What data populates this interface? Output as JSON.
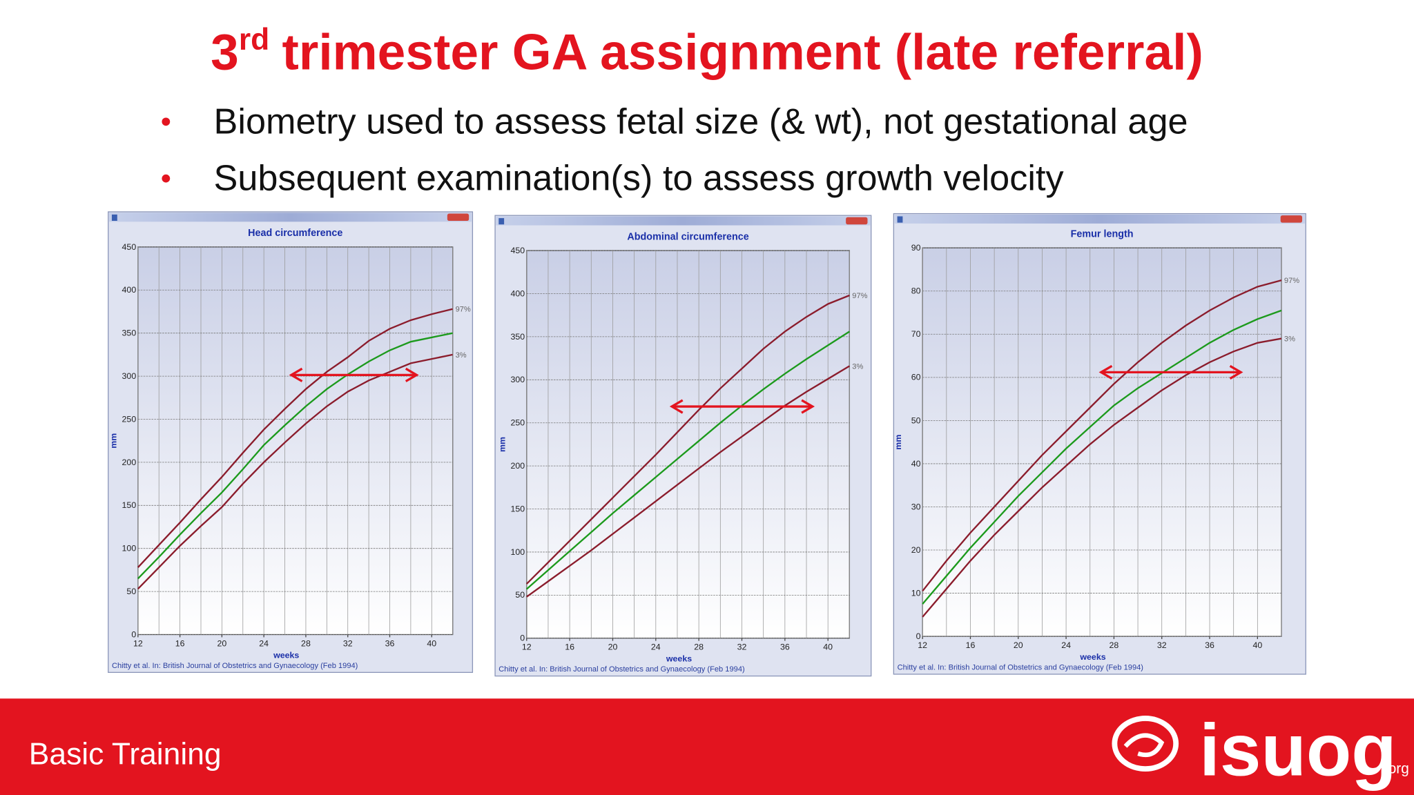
{
  "title": {
    "main": "3",
    "sup": "rd",
    "rest": "trimester GA assignment (late referral)"
  },
  "bullets": [
    "Biometry used to assess fetal size (& wt), not gestational age",
    "Subsequent examination(s) to assess growth velocity"
  ],
  "footer": {
    "label": "Basic Training",
    "logo": "isuog",
    "logo_suffix": ".org"
  },
  "chart_data": [
    {
      "type": "line",
      "title": "Head circumference",
      "xlabel": "weeks",
      "ylabel": "mm",
      "note": "Chitty et al. In: British Journal of Obstetrics and Gynaecology (Feb 1994)",
      "x": [
        12,
        14,
        16,
        18,
        20,
        22,
        24,
        26,
        28,
        30,
        32,
        34,
        36,
        38,
        40,
        42
      ],
      "series": [
        {
          "name": "97%",
          "color": "#8b1c2c",
          "values": [
            78,
            104,
            130,
            157,
            183,
            211,
            238,
            262,
            285,
            305,
            322,
            341,
            355,
            365,
            372,
            378
          ]
        },
        {
          "color": "#1c9a1c",
          "values": [
            65,
            90,
            116,
            141,
            165,
            192,
            220,
            243,
            265,
            285,
            302,
            317,
            330,
            340,
            345,
            350
          ]
        },
        {
          "name": "3%",
          "color": "#8b1c2c",
          "values": [
            53,
            78,
            103,
            126,
            148,
            175,
            200,
            223,
            245,
            265,
            282,
            295,
            305,
            315,
            320,
            325
          ]
        }
      ],
      "xlim": [
        12,
        42
      ],
      "xticks": [
        12,
        16,
        20,
        24,
        28,
        32,
        36,
        40
      ],
      "xgrid": [
        12,
        14,
        16,
        18,
        20,
        22,
        24,
        26,
        28,
        30,
        32,
        34,
        36,
        38,
        40,
        42
      ],
      "ylim": [
        0,
        450
      ],
      "yticks": [
        0,
        50,
        100,
        150,
        200,
        250,
        300,
        350,
        400,
        450
      ],
      "grid": true
    },
    {
      "type": "line",
      "title": "Abdominal circumference",
      "xlabel": "weeks",
      "ylabel": "mm",
      "note": "Chitty et al. In: British Journal of Obstetrics and Gynaecology (Feb 1994)",
      "x": [
        12,
        14,
        16,
        18,
        20,
        22,
        24,
        26,
        28,
        30,
        32,
        34,
        36,
        38,
        40,
        42
      ],
      "series": [
        {
          "name": "97%",
          "color": "#8b1c2c",
          "values": [
            63,
            88,
            113,
            138,
            163,
            188,
            213,
            239,
            265,
            290,
            313,
            336,
            356,
            373,
            388,
            398
          ]
        },
        {
          "color": "#1c9a1c",
          "values": [
            57,
            79,
            101,
            123,
            145,
            166,
            187,
            208,
            229,
            250,
            270,
            289,
            307,
            324,
            340,
            356
          ]
        },
        {
          "name": "3%",
          "color": "#8b1c2c",
          "values": [
            48,
            66,
            84,
            102,
            121,
            140,
            159,
            178,
            197,
            216,
            234,
            252,
            270,
            286,
            301,
            316
          ]
        }
      ],
      "xlim": [
        12,
        42
      ],
      "xticks": [
        12,
        16,
        20,
        24,
        28,
        32,
        36,
        40
      ],
      "xgrid": [
        12,
        14,
        16,
        18,
        20,
        22,
        24,
        26,
        28,
        30,
        32,
        34,
        36,
        38,
        40,
        42
      ],
      "ylim": [
        0,
        450
      ],
      "yticks": [
        0,
        50,
        100,
        150,
        200,
        250,
        300,
        350,
        400,
        450
      ],
      "grid": true
    },
    {
      "type": "line",
      "title": "Femur length",
      "xlabel": "weeks",
      "ylabel": "mm",
      "note": "Chitty et al. In: British Journal of Obstetrics and Gynaecology (Feb 1994)",
      "x": [
        12,
        14,
        16,
        18,
        20,
        22,
        24,
        26,
        28,
        30,
        32,
        34,
        36,
        38,
        40,
        42
      ],
      "series": [
        {
          "name": "97%",
          "color": "#8b1c2c",
          "values": [
            10.5,
            17.5,
            24,
            30,
            36,
            42,
            47.5,
            53,
            58.5,
            63.5,
            68,
            72,
            75.5,
            78.5,
            81,
            82.5
          ]
        },
        {
          "color": "#1c9a1c",
          "values": [
            7.5,
            14,
            20.5,
            26.5,
            32.5,
            38,
            43.5,
            48.5,
            53.5,
            57.5,
            61,
            64.5,
            68,
            71,
            73.5,
            75.5
          ]
        },
        {
          "name": "3%",
          "color": "#8b1c2c",
          "values": [
            4.5,
            11,
            17.5,
            23.5,
            29,
            34.5,
            39.5,
            44.5,
            49,
            53,
            57,
            60.5,
            63.5,
            66,
            68,
            69
          ]
        }
      ],
      "xlim": [
        12,
        42
      ],
      "xticks": [
        12,
        16,
        20,
        24,
        28,
        32,
        36,
        40
      ],
      "xgrid": [
        12,
        14,
        16,
        18,
        20,
        22,
        24,
        26,
        28,
        30,
        32,
        34,
        36,
        38,
        40,
        42
      ],
      "ylim": [
        0,
        90
      ],
      "yticks": [
        0,
        10,
        20,
        30,
        40,
        50,
        60,
        70,
        80,
        90
      ],
      "grid": true
    }
  ]
}
